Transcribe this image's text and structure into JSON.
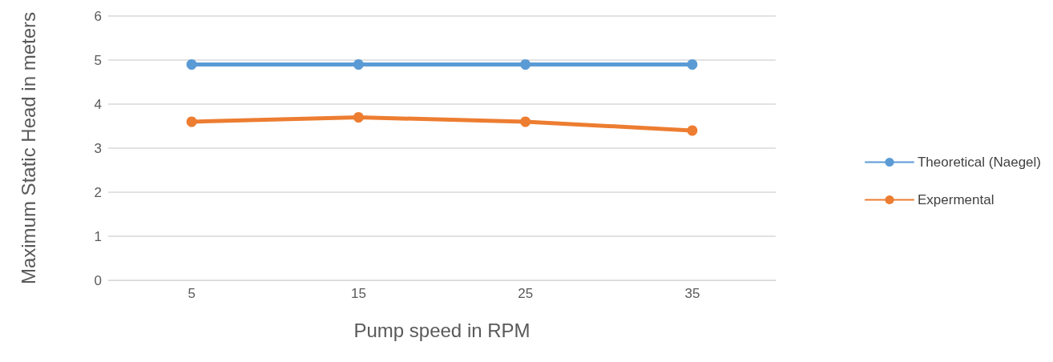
{
  "chart_data": {
    "type": "line",
    "xlabel": "Pump speed in RPM",
    "ylabel": "Maximum Static Head in meters",
    "categories": [
      "5",
      "15",
      "25",
      "35"
    ],
    "series": [
      {
        "name": "Theoretical (Naegel)",
        "color": "#5b9bd5",
        "values": [
          4.9,
          4.9,
          4.9,
          4.9
        ]
      },
      {
        "name": "Expermental",
        "color": "#ed7d31",
        "values": [
          3.6,
          3.7,
          3.6,
          3.4
        ]
      }
    ],
    "ylim": [
      0,
      6
    ],
    "yticks": [
      0,
      1,
      2,
      3,
      4,
      5,
      6
    ],
    "grid": "y",
    "legend": "right",
    "marker": "circle",
    "line_style": "solid"
  }
}
